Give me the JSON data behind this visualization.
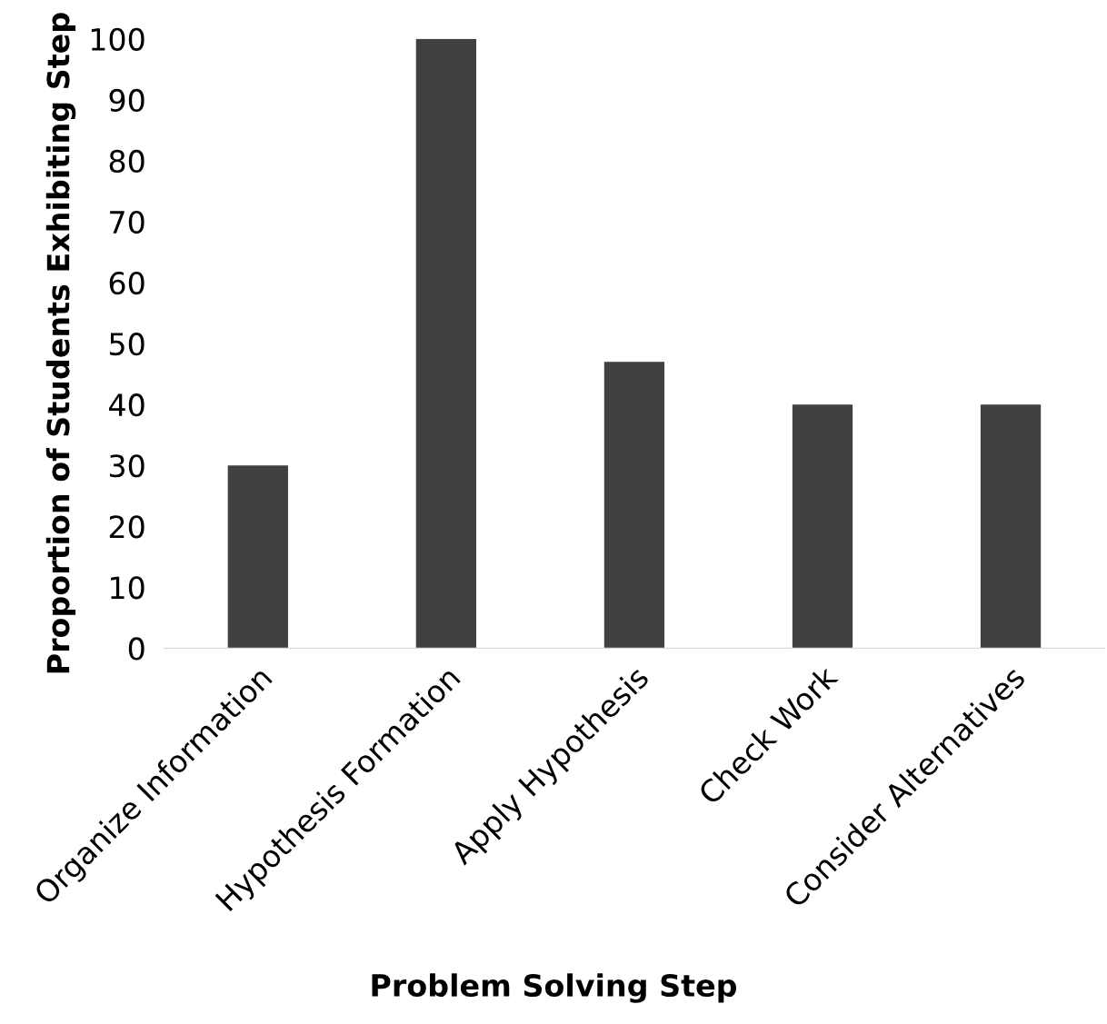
{
  "chart_data": {
    "type": "bar",
    "xlabel": "Problem Solving Step",
    "ylabel": "Proportion of Students Exhibiting Step",
    "categories": [
      "Organize Information",
      "Hypothesis Formation",
      "Apply Hypothesis",
      "Check Work",
      "Consider Alternatives"
    ],
    "values": [
      30,
      100,
      47,
      40,
      40
    ],
    "color": "#404040",
    "ylim": [
      0,
      100
    ],
    "yticks": [
      0,
      10,
      20,
      30,
      40,
      50,
      60,
      70,
      80,
      90,
      100
    ],
    "grid": false,
    "legend": false
  }
}
